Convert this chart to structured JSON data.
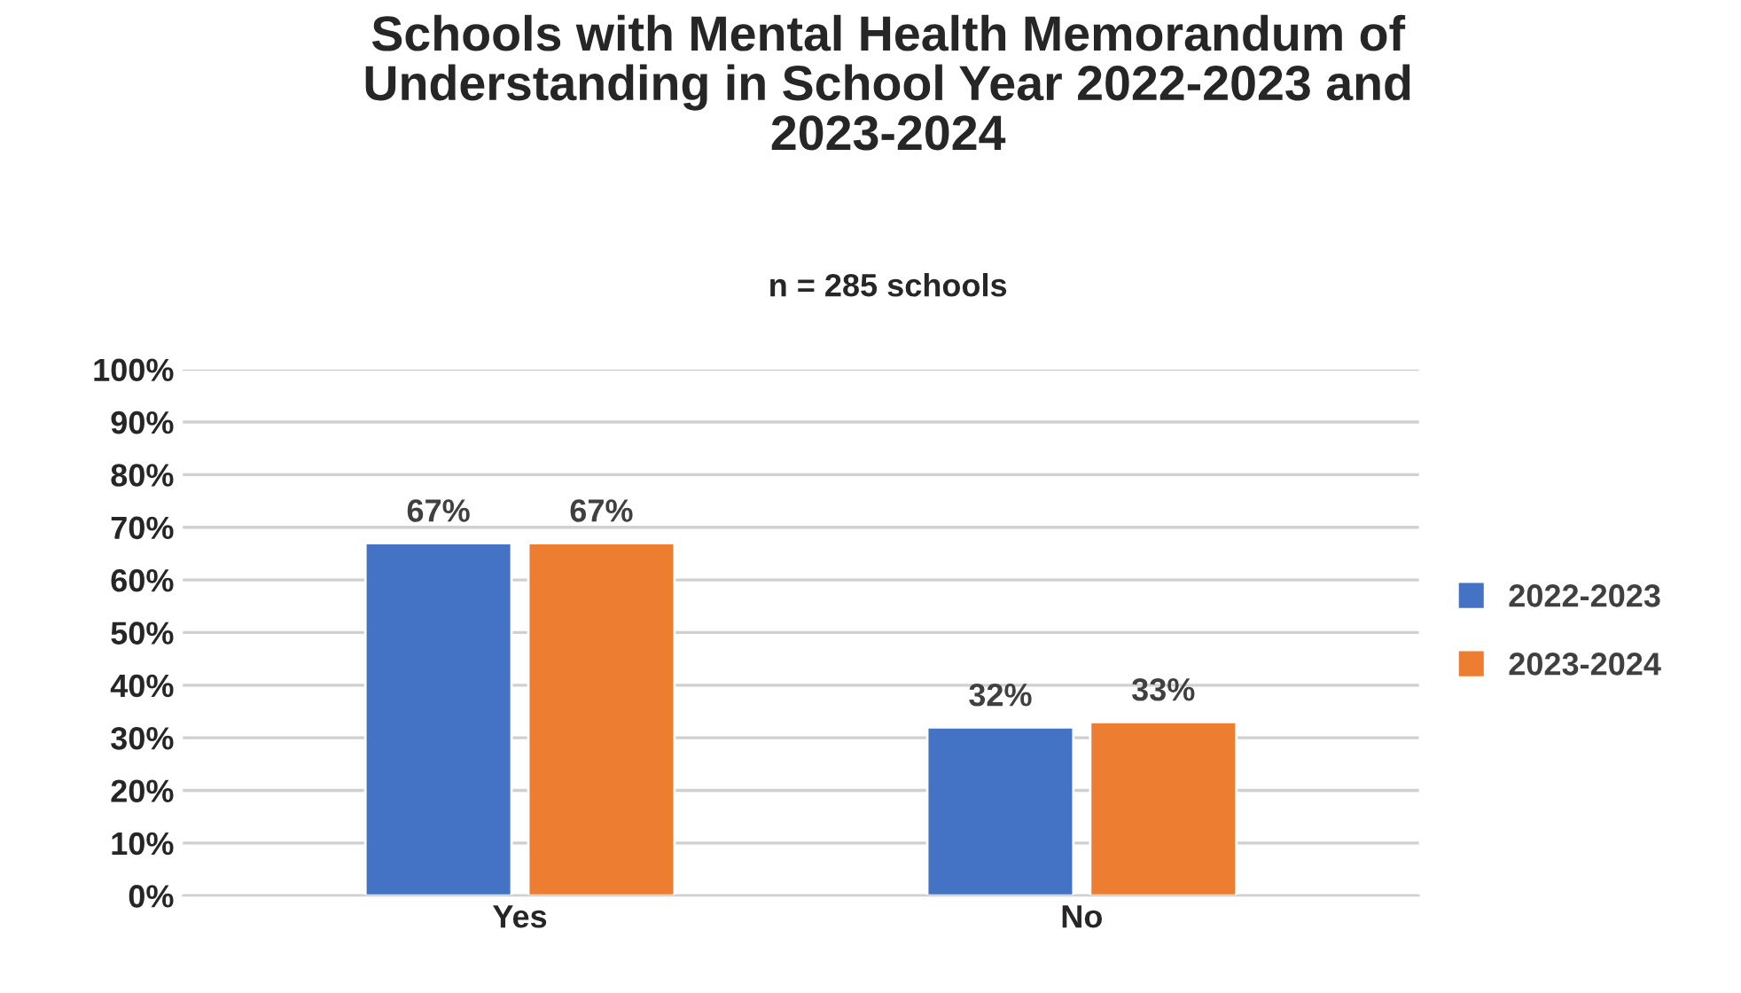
{
  "chart_data": {
    "type": "bar",
    "title": "Schools with Mental Health Memorandum of\nUnderstanding in School Year 2022-2023 and\n2023-2024",
    "subtitle": "n = 285 schools",
    "categories": [
      "Yes",
      "No"
    ],
    "series": [
      {
        "name": "2022-2023",
        "color": "#4472c4",
        "values": [
          67,
          32
        ],
        "value_labels": [
          "67%",
          "32%"
        ]
      },
      {
        "name": "2023-2024",
        "color": "#ed7d31",
        "values": [
          67,
          33
        ],
        "value_labels": [
          "67%",
          "33%"
        ]
      }
    ],
    "ylim": [
      0,
      100
    ],
    "yticks": [
      {
        "value": 0,
        "label": "0%"
      },
      {
        "value": 10,
        "label": "10%"
      },
      {
        "value": 20,
        "label": "20%"
      },
      {
        "value": 30,
        "label": "30%"
      },
      {
        "value": 40,
        "label": "40%"
      },
      {
        "value": 50,
        "label": "50%"
      },
      {
        "value": 60,
        "label": "60%"
      },
      {
        "value": 70,
        "label": "70%"
      },
      {
        "value": 80,
        "label": "80%"
      },
      {
        "value": 90,
        "label": "90%"
      },
      {
        "value": 100,
        "label": "100%"
      }
    ],
    "grid": "y",
    "legend": "right"
  }
}
